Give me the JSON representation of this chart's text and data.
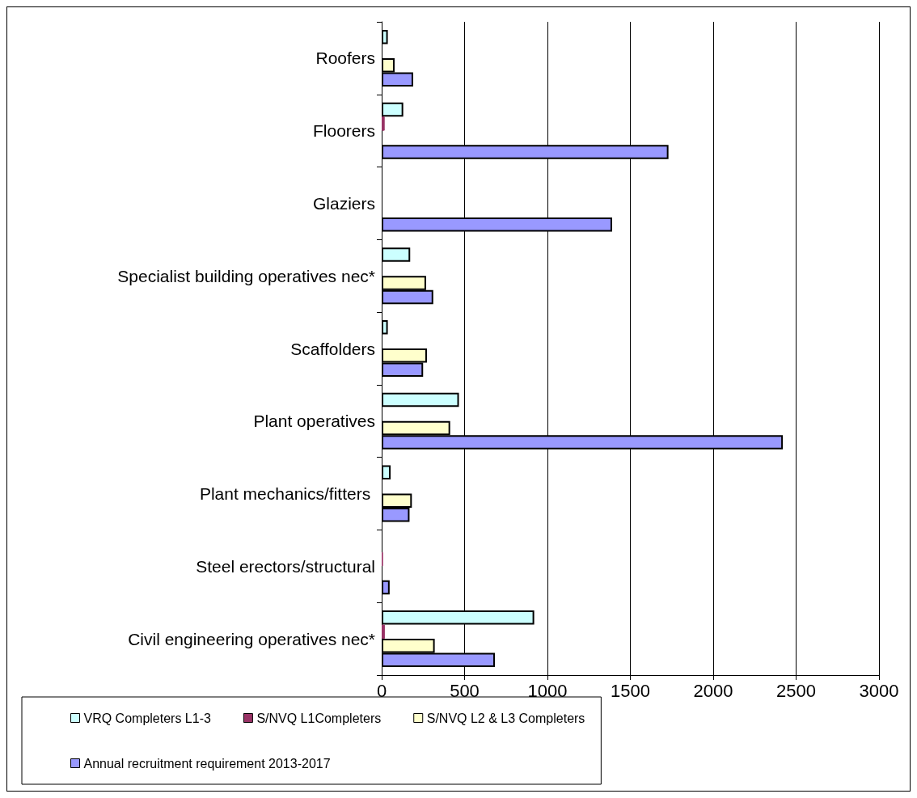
{
  "chart_data": {
    "type": "bar",
    "orientation": "horizontal",
    "categories": [
      "Roofers",
      "Floorers",
      "Glaziers",
      "Specialist building operatives nec*",
      "Scaffolders",
      "Plant operatives",
      "Plant mechanics/fitters ",
      "Steel erectors/structural",
      "Civil engineering operatives nec*"
    ],
    "series": [
      {
        "name": "VRQ Completers L1-3",
        "color": "#ccffff",
        "values": [
          37,
          130,
          0,
          172,
          37,
          466,
          54,
          0,
          920
        ]
      },
      {
        "name": "S/NVQ L1Completers",
        "color": "#993366",
        "values": [
          0,
          18,
          0,
          0,
          0,
          0,
          0,
          8,
          19
        ]
      },
      {
        "name": "S/NVQ L2 & L3 Completers",
        "color": "#ffffcc",
        "values": [
          78,
          0,
          0,
          268,
          273,
          413,
          182,
          0,
          320
        ]
      },
      {
        "name": "Annual recruitment requirement 2013-2017",
        "color": "#9999ff",
        "values": [
          190,
          1730,
          1390,
          311,
          250,
          2420,
          168,
          48,
          683
        ]
      }
    ],
    "xlim": [
      0,
      3000
    ],
    "xticks": [
      0,
      500,
      1000,
      1500,
      2000,
      2500,
      3000
    ],
    "grid": "x",
    "legend": "bottom"
  }
}
